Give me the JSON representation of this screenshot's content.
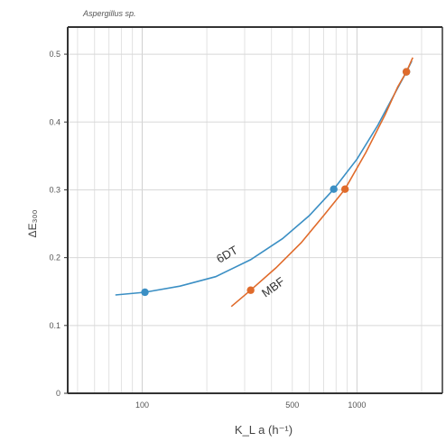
{
  "chart_data": {
    "type": "line",
    "title": "Aspergillus sp.",
    "xlabel": "K_L a  (h⁻¹)",
    "ylabel": "ΔE₃₀₀",
    "x_scale": "log",
    "xlim": [
      45,
      2500
    ],
    "ylim": [
      0,
      0.54
    ],
    "x_ticks": [
      100,
      500,
      1000
    ],
    "x_tick_labels": [
      "100",
      "500",
      "1000"
    ],
    "y_ticks": [
      0,
      0.1,
      0.2,
      0.3,
      0.4,
      0.5
    ],
    "y_tick_labels": [
      "0",
      "0.1",
      "0.2",
      "0.3",
      "0.4",
      "0.5"
    ],
    "grid": true,
    "series": [
      {
        "name": "6DT",
        "color": "#3b8fc4",
        "points": [
          {
            "x": 103,
            "y": 0.149
          },
          {
            "x": 780,
            "y": 0.301
          },
          {
            "x": 1700,
            "y": 0.474
          }
        ],
        "curve": [
          [
            75,
            0.145
          ],
          [
            103,
            0.149
          ],
          [
            150,
            0.158
          ],
          [
            220,
            0.172
          ],
          [
            320,
            0.197
          ],
          [
            450,
            0.228
          ],
          [
            600,
            0.262
          ],
          [
            780,
            0.301
          ],
          [
            1000,
            0.345
          ],
          [
            1250,
            0.395
          ],
          [
            1500,
            0.442
          ],
          [
            1700,
            0.474
          ],
          [
            1800,
            0.49
          ]
        ]
      },
      {
        "name": "MBF",
        "color": "#e06b2b",
        "points": [
          {
            "x": 320,
            "y": 0.152
          },
          {
            "x": 880,
            "y": 0.301
          },
          {
            "x": 1700,
            "y": 0.474
          }
        ],
        "curve": [
          [
            260,
            0.128
          ],
          [
            320,
            0.152
          ],
          [
            420,
            0.185
          ],
          [
            550,
            0.222
          ],
          [
            700,
            0.262
          ],
          [
            880,
            0.301
          ],
          [
            1100,
            0.355
          ],
          [
            1350,
            0.41
          ],
          [
            1550,
            0.452
          ],
          [
            1700,
            0.474
          ],
          [
            1820,
            0.495
          ]
        ]
      }
    ],
    "annotations": [
      "6DT",
      "MBF"
    ],
    "legend": "none"
  }
}
